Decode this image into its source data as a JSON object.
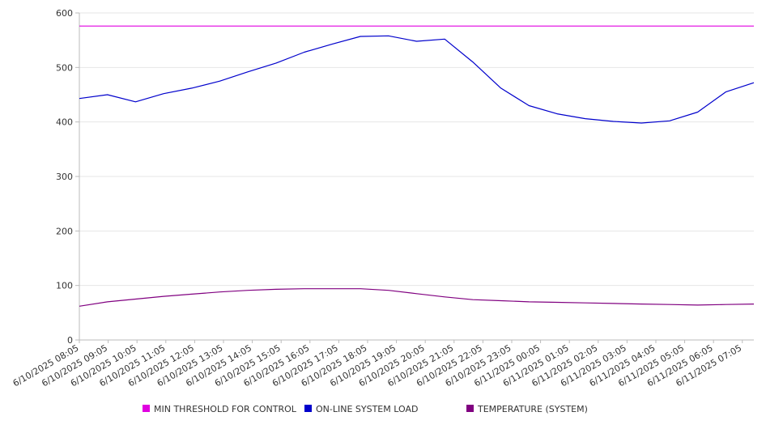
{
  "chart_data": {
    "type": "line",
    "title": "",
    "xlabel": "",
    "ylabel": "",
    "ylim": [
      0,
      600
    ],
    "yticks": [
      0,
      100,
      200,
      300,
      400,
      500,
      600
    ],
    "grid": true,
    "legend_position": "bottom",
    "x_tick_labels": [
      "6/10/2025 08:05",
      "6/10/2025 09:05",
      "6/10/2025 10:05",
      "6/10/2025 11:05",
      "6/10/2025 12:05",
      "6/10/2025 13:05",
      "6/10/2025 14:05",
      "6/10/2025 15:05",
      "6/10/2025 16:05",
      "6/10/2025 17:05",
      "6/10/2025 18:05",
      "6/10/2025 19:05",
      "6/10/2025 20:05",
      "6/10/2025 21:05",
      "6/10/2025 22:05",
      "6/10/2025 23:05",
      "6/11/2025 00:05",
      "6/11/2025 01:05",
      "6/11/2025 02:05",
      "6/11/2025 03:05",
      "6/11/2025 04:05",
      "6/11/2025 05:05",
      "6/11/2025 06:05",
      "6/11/2025 07:05"
    ],
    "series": [
      {
        "name": "MIN THRESHOLD FOR CONTROL",
        "color": "#e000e0",
        "values": [
          576,
          576,
          576,
          576,
          576,
          576,
          576,
          576,
          576,
          576,
          576,
          576,
          576,
          576,
          576,
          576,
          576,
          576,
          576,
          576,
          576,
          576,
          576,
          576,
          576
        ]
      },
      {
        "name": "ON-LINE SYSTEM LOAD",
        "color": "#0000cc",
        "values": [
          443,
          450,
          437,
          452,
          462,
          475,
          492,
          508,
          528,
          543,
          557,
          558,
          548,
          552,
          510,
          462,
          430,
          415,
          406,
          401,
          398,
          402,
          418,
          455,
          472
        ]
      },
      {
        "name": "TEMPERATURE (SYSTEM)",
        "color": "#800080",
        "values": [
          62,
          70,
          75,
          80,
          84,
          88,
          91,
          93,
          94,
          94,
          94,
          91,
          85,
          79,
          74,
          72,
          70,
          69,
          68,
          67,
          66,
          65,
          64,
          65,
          66
        ]
      }
    ]
  }
}
